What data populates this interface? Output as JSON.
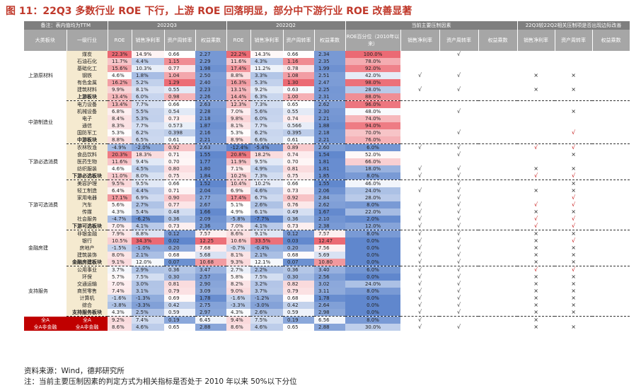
{
  "title": "图 11：22Q3 多数行业 ROE 下行，上游 ROE 回落明显，部分中下游行业 ROE 改善显著",
  "header": {
    "note": "备注：表内值均为TTM",
    "group_2022q3": "2022Q3",
    "group_2022q2": "2022Q2",
    "group_factor": "当前主要压制因素",
    "group_trend": "22Q3较22Q2相关压制项是否出现边际改善",
    "col_big": "大类板块",
    "col_ind": "一级行业",
    "col_roe": "ROE",
    "col_margin": "销售净利率",
    "col_turnover": "资产周转率",
    "col_equity": "权益乘数",
    "col_roe_pct": "ROE百分位（2010年以来）"
  },
  "chart_data": {
    "type": "table",
    "colors": {
      "high": "#e8505b",
      "low": "#4472c4",
      "mid": "#ffffff",
      "sector_red": "#c00000",
      "industry_bg": "#f5ead0"
    },
    "rows": [
      {
        "big": "上游原材料",
        "ind": "煤炭",
        "q3": [
          "22.3%",
          "14.9%",
          "0.66",
          "2.27"
        ],
        "q2": [
          "22.2%",
          "14.3%",
          "0.66",
          "2.34"
        ],
        "pct": "100.0%",
        "f": [
          "",
          "√",
          ""
        ],
        "t": [
          "",
          "",
          ""
        ]
      },
      {
        "big": "",
        "ind": "石油石化",
        "q3": [
          "11.7%",
          "4.4%",
          "1.15",
          "2.29"
        ],
        "q2": [
          "11.6%",
          "4.3%",
          "1.16",
          "2.35"
        ],
        "pct": "78.0%",
        "f": [
          "",
          "",
          ""
        ],
        "t": [
          "",
          "",
          ""
        ]
      },
      {
        "big": "",
        "ind": "基础化工",
        "q3": [
          "15.6%",
          "10.3%",
          "0.77",
          "1.98"
        ],
        "q2": [
          "17.4%",
          "11.2%",
          "0.78",
          "1.99"
        ],
        "pct": "92.0%",
        "f": [
          "",
          "",
          ""
        ],
        "t": [
          "",
          "",
          ""
        ]
      },
      {
        "big": "",
        "ind": "钢铁",
        "q3": [
          "4.6%",
          "1.8%",
          "1.04",
          "2.50"
        ],
        "q2": [
          "8.8%",
          "3.3%",
          "1.08",
          "2.51"
        ],
        "pct": "42.0%",
        "f": [
          "√",
          "√",
          ""
        ],
        "t": [
          "×",
          "×",
          ""
        ]
      },
      {
        "big": "",
        "ind": "有色金属",
        "q3": [
          "16.2%",
          "5.2%",
          "1.29",
          "2.40"
        ],
        "q2": [
          "16.3%",
          "5.3%",
          "1.30",
          "2.47"
        ],
        "pct": "98.0%",
        "f": [
          "",
          "",
          ""
        ],
        "t": [
          "",
          "",
          ""
        ]
      },
      {
        "big": "",
        "ind": "建筑材料",
        "q3": [
          "9.9%",
          "8.1%",
          "0.55",
          "2.23"
        ],
        "q2": [
          "13.1%",
          "9.2%",
          "0.63",
          "2.25"
        ],
        "pct": "28.0%",
        "f": [
          "√",
          "√",
          ""
        ],
        "t": [
          "×",
          "×",
          ""
        ]
      },
      {
        "big": "",
        "ind": "上游板块",
        "q3": [
          "13.4%",
          "6.0%",
          "0.98",
          "2.26"
        ],
        "q2": [
          "14.4%",
          "6.3%",
          "1.00",
          "2.31"
        ],
        "pct": "88.0%",
        "f": [
          "",
          "",
          ""
        ],
        "t": [
          "",
          "",
          ""
        ],
        "sub": true
      },
      {
        "big": "中游制造业",
        "ind": "电力设备",
        "q3": [
          "13.4%",
          "7.7%",
          "0.66",
          "2.63"
        ],
        "q2": [
          "12.3%",
          "7.3%",
          "0.65",
          "2.62"
        ],
        "pct": "96.0%",
        "f": [
          "",
          "",
          ""
        ],
        "t": [
          "",
          "",
          ""
        ]
      },
      {
        "big": "",
        "ind": "机械设备",
        "q3": [
          "6.8%",
          "5.5%",
          "0.54",
          "2.28"
        ],
        "q2": [
          "7.0%",
          "5.6%",
          "0.55",
          "2.30"
        ],
        "pct": "48.0%",
        "f": [
          "",
          "√",
          ""
        ],
        "t": [
          "",
          "×",
          ""
        ]
      },
      {
        "big": "",
        "ind": "电子",
        "q3": [
          "8.4%",
          "5.3%",
          "0.73",
          "2.18"
        ],
        "q2": [
          "9.8%",
          "6.0%",
          "0.74",
          "2.21"
        ],
        "pct": "74.0%",
        "f": [
          "",
          "",
          ""
        ],
        "t": [
          "",
          "",
          ""
        ]
      },
      {
        "big": "",
        "ind": "通信",
        "q3": [
          "8.3%",
          "7.7%",
          "0.573",
          "1.87"
        ],
        "q2": [
          "8.1%",
          "7.7%",
          "0.566",
          "1.88"
        ],
        "pct": "94.0%",
        "f": [
          "",
          "",
          ""
        ],
        "t": [
          "",
          "",
          ""
        ]
      },
      {
        "big": "",
        "ind": "国防军工",
        "q3": [
          "5.3%",
          "6.2%",
          "0.398",
          "2.16"
        ],
        "q2": [
          "5.3%",
          "6.2%",
          "0.395",
          "2.18"
        ],
        "pct": "70.0%",
        "f": [
          "",
          "√",
          ""
        ],
        "t": [
          "",
          "√",
          ""
        ]
      },
      {
        "big": "",
        "ind": "中游板块",
        "q3": [
          "8.8%",
          "6.5%",
          "0.61",
          "2.21"
        ],
        "q2": [
          "8.9%",
          "6.6%",
          "0.61",
          "2.21"
        ],
        "pct": "76.0%",
        "f": [
          "",
          "",
          ""
        ],
        "t": [
          "",
          "",
          ""
        ],
        "sub": true
      },
      {
        "big": "下游必选消费",
        "ind": "农林牧渔",
        "q3": [
          "-4.9%",
          "-2.0%",
          "0.92",
          "2.63"
        ],
        "q2": [
          "-12.4%",
          "-5.4%",
          "0.89",
          "2.60"
        ],
        "pct": "6.0%",
        "f": [
          "√",
          "√",
          ""
        ],
        "t": [
          "√",
          "√",
          ""
        ]
      },
      {
        "big": "",
        "ind": "食品饮料",
        "q3": [
          "20.3%",
          "18.3%",
          "0.71",
          "1.55"
        ],
        "q2": [
          "20.8%",
          "18.2%",
          "0.74",
          "1.54"
        ],
        "pct": "52.0%",
        "f": [
          "",
          "√",
          ""
        ],
        "t": [
          "",
          "×",
          ""
        ]
      },
      {
        "big": "",
        "ind": "医药生物",
        "q3": [
          "11.6%",
          "9.4%",
          "0.70",
          "1.77"
        ],
        "q2": [
          "11.9%",
          "9.5%",
          "0.70",
          "1.81"
        ],
        "pct": "66.0%",
        "f": [
          "",
          "",
          ""
        ],
        "t": [
          "",
          "",
          ""
        ]
      },
      {
        "big": "",
        "ind": "纺织服装",
        "q3": [
          "4.6%",
          "4.5%",
          "0.80",
          "1.80"
        ],
        "q2": [
          "7.1%",
          "4.9%",
          "0.81",
          "1.81"
        ],
        "pct": "18.0%",
        "f": [
          "√",
          "√",
          ""
        ],
        "t": [
          "×",
          "×",
          ""
        ]
      },
      {
        "big": "",
        "ind": "下游必选板块",
        "q3": [
          "11.0%",
          "8.0%",
          "0.75",
          "1.84"
        ],
        "q2": [
          "10.2%",
          "7.3%",
          "0.75",
          "1.85"
        ],
        "pct": "8.0%",
        "f": [
          "√",
          "√",
          ""
        ],
        "t": [
          "√",
          "√",
          ""
        ],
        "sub": true
      },
      {
        "big": "下游可选消费",
        "ind": "美容护理",
        "q3": [
          "9.5%",
          "9.5%",
          "0.66",
          "1.52"
        ],
        "q2": [
          "10.4%",
          "10.2%",
          "0.66",
          "1.55"
        ],
        "pct": "46.0%",
        "f": [
          "",
          "√",
          ""
        ],
        "t": [
          "",
          "×",
          ""
        ]
      },
      {
        "big": "",
        "ind": "轻工制造",
        "q3": [
          "6.4%",
          "4.4%",
          "0.71",
          "2.04"
        ],
        "q2": [
          "6.9%",
          "4.6%",
          "0.73",
          "2.06"
        ],
        "pct": "24.0%",
        "f": [
          "√",
          "√",
          ""
        ],
        "t": [
          "×",
          "×",
          ""
        ]
      },
      {
        "big": "",
        "ind": "家用电器",
        "q3": [
          "17.1%",
          "6.9%",
          "0.90",
          "2.77"
        ],
        "q2": [
          "17.4%",
          "6.7%",
          "0.92",
          "2.84"
        ],
        "pct": "28.0%",
        "f": [
          "",
          "√",
          ""
        ],
        "t": [
          "",
          "√",
          ""
        ]
      },
      {
        "big": "",
        "ind": "汽车",
        "q3": [
          "5.6%",
          "2.7%",
          "0.77",
          "2.67"
        ],
        "q2": [
          "5.1%",
          "2.6%",
          "0.76",
          "2.62"
        ],
        "pct": "8.0%",
        "f": [
          "√",
          "√",
          ""
        ],
        "t": [
          "√",
          "√",
          ""
        ]
      },
      {
        "big": "",
        "ind": "传媒",
        "q3": [
          "4.3%",
          "5.4%",
          "0.48",
          "1.66"
        ],
        "q2": [
          "4.9%",
          "6.1%",
          "0.49",
          "1.67"
        ],
        "pct": "22.0%",
        "f": [
          "√",
          "√",
          ""
        ],
        "t": [
          "×",
          "×",
          ""
        ]
      },
      {
        "big": "",
        "ind": "社会服务",
        "q3": [
          "-4.7%",
          "-6.2%",
          "0.36",
          "2.09"
        ],
        "q2": [
          "-5.8%",
          "-7.7%",
          "0.36",
          "2.10"
        ],
        "pct": "2.0%",
        "f": [
          "√",
          "√",
          ""
        ],
        "t": [
          "√",
          "√",
          ""
        ]
      },
      {
        "big": "",
        "ind": "下游可选板块",
        "q3": [
          "7.0%",
          "4.1%",
          "0.73",
          "2.36"
        ],
        "q2": [
          "7.0%",
          "4.1%",
          "0.73",
          "2.38"
        ],
        "pct": "12.0%",
        "f": [
          "√",
          "√",
          ""
        ],
        "t": [
          "√",
          "√",
          ""
        ],
        "sub": true
      },
      {
        "big": "金融房建",
        "ind": "非银金融",
        "q3": [
          "7.9%",
          "8.8%",
          "0.12",
          "7.57"
        ],
        "q2": [
          "8.6%",
          "9.1%",
          "0.12",
          "7.57"
        ],
        "pct": "8.0%",
        "f": [
          "√",
          "√",
          ""
        ],
        "t": [
          "×",
          "×",
          ""
        ]
      },
      {
        "big": "",
        "ind": "银行",
        "q3": [
          "10.5%",
          "34.3%",
          "0.02",
          "12.25"
        ],
        "q2": [
          "10.6%",
          "33.5%",
          "0.03",
          "12.47"
        ],
        "pct": "0.0%",
        "f": [
          "√",
          "√",
          ""
        ],
        "t": [
          "×",
          "√",
          ""
        ]
      },
      {
        "big": "",
        "ind": "房地产",
        "q3": [
          "-1.5%",
          "-1.0%",
          "0.20",
          "7.68"
        ],
        "q2": [
          "-0.7%",
          "-0.4%",
          "0.20",
          "7.56"
        ],
        "pct": "0.0%",
        "f": [
          "√",
          "√",
          ""
        ],
        "t": [
          "×",
          "×",
          ""
        ]
      },
      {
        "big": "",
        "ind": "建筑装饰",
        "q3": [
          "8.0%",
          "2.1%",
          "0.68",
          "5.68"
        ],
        "q2": [
          "8.1%",
          "2.1%",
          "0.68",
          "5.69"
        ],
        "pct": "0.0%",
        "f": [
          "√",
          "√",
          ""
        ],
        "t": [
          "×",
          "×",
          ""
        ]
      },
      {
        "big": "",
        "ind": "金融房建板块",
        "q3": [
          "9.1%",
          "12.0%",
          "0.07",
          "10.68"
        ],
        "q2": [
          "9.3%",
          "12.1%",
          "0.07",
          "10.80"
        ],
        "pct": "0.0%",
        "f": [
          "√",
          "√",
          ""
        ],
        "t": [
          "×",
          "×",
          ""
        ],
        "sub": true
      },
      {
        "big": "支持服务",
        "ind": "公用事业",
        "q3": [
          "3.7%",
          "2.9%",
          "0.36",
          "3.47"
        ],
        "q2": [
          "2.7%",
          "2.2%",
          "0.36",
          "3.40"
        ],
        "pct": "6.0%",
        "f": [
          "√",
          "√",
          ""
        ],
        "t": [
          "√",
          "√",
          ""
        ]
      },
      {
        "big": "",
        "ind": "环保",
        "q3": [
          "5.7%",
          "7.5%",
          "0.30",
          "2.57"
        ],
        "q2": [
          "5.8%",
          "7.5%",
          "0.30",
          "2.56"
        ],
        "pct": "0.0%",
        "f": [
          "√",
          "√",
          ""
        ],
        "t": [
          "×",
          "×",
          ""
        ]
      },
      {
        "big": "",
        "ind": "交通运输",
        "q3": [
          "7.0%",
          "3.0%",
          "0.81",
          "2.90"
        ],
        "q2": [
          "8.2%",
          "3.2%",
          "0.82",
          "3.02"
        ],
        "pct": "24.0%",
        "f": [
          "√",
          "√",
          ""
        ],
        "t": [
          "×",
          "×",
          ""
        ]
      },
      {
        "big": "",
        "ind": "商贸零售",
        "q3": [
          "7.4%",
          "3.1%",
          "0.79",
          "3.09"
        ],
        "q2": [
          "9.0%",
          "3.7%",
          "0.79",
          "3.11"
        ],
        "pct": "8.0%",
        "f": [
          "√",
          "√",
          ""
        ],
        "t": [
          "×",
          "×",
          ""
        ]
      },
      {
        "big": "",
        "ind": "计算机",
        "q3": [
          "-1.6%",
          "-1.3%",
          "0.69",
          "1.78"
        ],
        "q2": [
          "-1.6%",
          "-1.2%",
          "0.68",
          "1.78"
        ],
        "pct": "0.0%",
        "f": [
          "√",
          "√",
          ""
        ],
        "t": [
          "×",
          "×",
          ""
        ]
      },
      {
        "big": "",
        "ind": "综合",
        "q3": [
          "-3.8%",
          "-3.3%",
          "0.42",
          "2.75"
        ],
        "q2": [
          "-3.3%",
          "-3.0%",
          "0.42",
          "2.64"
        ],
        "pct": "0.0%",
        "f": [
          "√",
          "√",
          ""
        ],
        "t": [
          "×",
          "×",
          ""
        ]
      },
      {
        "big": "",
        "ind": "支持服务板块",
        "q3": [
          "4.3%",
          "2.5%",
          "0.59",
          "2.97"
        ],
        "q2": [
          "4.3%",
          "2.6%",
          "0.59",
          "2.98"
        ],
        "pct": "0.0%",
        "f": [
          "√",
          "√",
          ""
        ],
        "t": [
          "×",
          "×",
          ""
        ],
        "sub": true
      },
      {
        "big": "全A",
        "ind": "全A",
        "q3": [
          "9.2%",
          "7.4%",
          "0.19",
          "6.45"
        ],
        "q2": [
          "9.4%",
          "7.5%",
          "0.19",
          "6.56"
        ],
        "pct": "8.0%",
        "f": [
          "√",
          "",
          ""
        ],
        "t": [
          "×",
          "",
          ""
        ],
        "red": true
      },
      {
        "big": "全A非金融",
        "ind": "全A非金融",
        "q3": [
          "8.6%",
          "4.6%",
          "0.65",
          "2.88"
        ],
        "q2": [
          "8.6%",
          "4.6%",
          "0.65",
          "2.88"
        ],
        "pct": "30.0%",
        "f": [
          "√",
          "√",
          ""
        ],
        "t": [
          "×",
          "×",
          ""
        ],
        "red": true
      }
    ]
  },
  "footer": {
    "source": "资料来源：Wind，德邦研究所",
    "note": "注：当前主要压制因素的判定方式为相关指标是否处于 2010 年以来 50%以下分位"
  }
}
